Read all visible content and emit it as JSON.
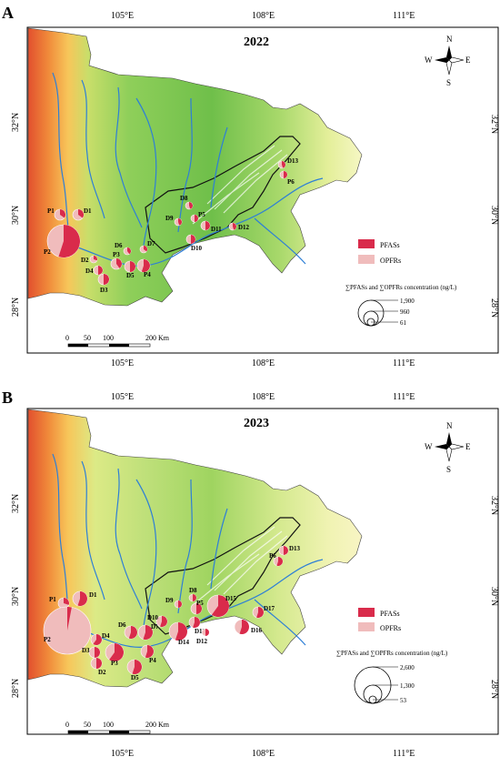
{
  "panels": [
    {
      "panel_label": "A",
      "year": "2022",
      "legend": {
        "pfas_label": "PFASs",
        "opfr_label": "OPFRs",
        "concentration_title": "∑PFASs and ∑OPFRs concentration (ng/L)",
        "size_values": [
          "1,900",
          "960",
          "61"
        ]
      },
      "scalebar": {
        "ticks": [
          "0",
          "50",
          "100",
          "200 Km"
        ]
      },
      "sites": [
        {
          "id": "P1",
          "pfas_fraction": 0.35
        },
        {
          "id": "D1",
          "pfas_fraction": 0.35
        },
        {
          "id": "P2",
          "pfas_fraction": 0.55
        },
        {
          "id": "D2",
          "pfas_fraction": 0.3
        },
        {
          "id": "D4",
          "pfas_fraction": 0.5
        },
        {
          "id": "P3",
          "pfas_fraction": 0.4
        },
        {
          "id": "D3",
          "pfas_fraction": 0.5
        },
        {
          "id": "D5",
          "pfas_fraction": 0.5
        },
        {
          "id": "P4",
          "pfas_fraction": 0.55
        },
        {
          "id": "D6",
          "pfas_fraction": 0.4
        },
        {
          "id": "D7",
          "pfas_fraction": 0.35
        },
        {
          "id": "D8",
          "pfas_fraction": 0.45
        },
        {
          "id": "D9",
          "pfas_fraction": 0.45
        },
        {
          "id": "P5",
          "pfas_fraction": 0.5
        },
        {
          "id": "D11",
          "pfas_fraction": 0.5
        },
        {
          "id": "D10",
          "pfas_fraction": 0.5
        },
        {
          "id": "D12",
          "pfas_fraction": 0.45
        },
        {
          "id": "D13",
          "pfas_fraction": 0.45
        },
        {
          "id": "P6",
          "pfas_fraction": 0.5
        }
      ]
    },
    {
      "panel_label": "B",
      "year": "2023",
      "legend": {
        "pfas_label": "PFASs",
        "opfr_label": "OPFRs",
        "concentration_title": "∑PFASs and ∑OPFRs concentration (ng/L)",
        "size_values": [
          "2,600",
          "1,300",
          "53"
        ]
      },
      "scalebar": {
        "ticks": [
          "0",
          "50",
          "100",
          "200 Km"
        ]
      },
      "sites": [
        {
          "id": "P1",
          "pfas_fraction": 0.3
        },
        {
          "id": "D1",
          "pfas_fraction": 0.55
        },
        {
          "id": "P2",
          "pfas_fraction": 0.03
        },
        {
          "id": "D4",
          "pfas_fraction": 0.6
        },
        {
          "id": "D3",
          "pfas_fraction": 0.5
        },
        {
          "id": "D2",
          "pfas_fraction": 0.5
        },
        {
          "id": "P3",
          "pfas_fraction": 0.6
        },
        {
          "id": "D5",
          "pfas_fraction": 0.55
        },
        {
          "id": "P4",
          "pfas_fraction": 0.55
        },
        {
          "id": "D6",
          "pfas_fraction": 0.55
        },
        {
          "id": "D7",
          "pfas_fraction": 0.55
        },
        {
          "id": "D10",
          "pfas_fraction": 0.55
        },
        {
          "id": "D14",
          "pfas_fraction": 0.55
        },
        {
          "id": "D9",
          "pfas_fraction": 0.5
        },
        {
          "id": "D8",
          "pfas_fraction": 0.5
        },
        {
          "id": "P5",
          "pfas_fraction": 0.5
        },
        {
          "id": "D11",
          "pfas_fraction": 0.55
        },
        {
          "id": "D15",
          "pfas_fraction": 0.6
        },
        {
          "id": "D12",
          "pfas_fraction": 0.5
        },
        {
          "id": "D16",
          "pfas_fraction": 0.55
        },
        {
          "id": "D17",
          "pfas_fraction": 0.55
        },
        {
          "id": "D13",
          "pfas_fraction": 0.5
        },
        {
          "id": "P6",
          "pfas_fraction": 0.55
        }
      ]
    }
  ],
  "axes": {
    "longitudes": [
      "105°E",
      "108°E",
      "111°E"
    ],
    "latitudes": [
      "32°N",
      "30°N",
      "28°N"
    ]
  },
  "north_arrow": {
    "n": "N",
    "s": "S",
    "e": "E",
    "w": "W"
  },
  "colors": {
    "pfas": "#d92b4b",
    "opfr": "#f0bcbc",
    "river": "#2e7fd6",
    "boundary": "#111111"
  }
}
